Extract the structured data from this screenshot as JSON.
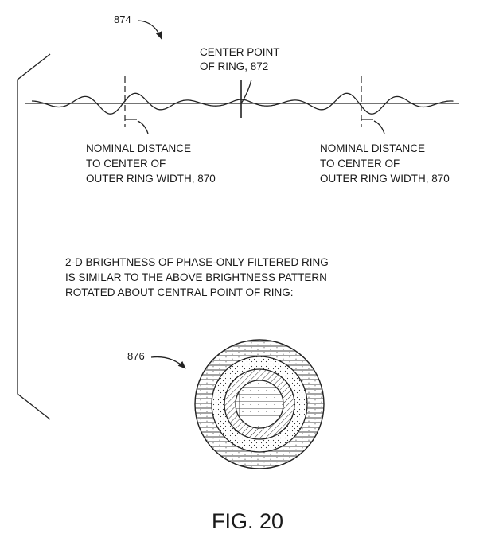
{
  "refs": {
    "waveform": "874",
    "ring": "876"
  },
  "center_label": [
    "CENTER POINT",
    "OF RING, 872"
  ],
  "left_label": [
    "NOMINAL DISTANCE",
    "TO CENTER OF",
    "OUTER RING WIDTH, 870"
  ],
  "right_label": [
    "NOMINAL DISTANCE",
    "TO CENTER OF",
    "OUTER RING WIDTH, 870"
  ],
  "description": [
    "2-D BRIGHTNESS OF PHASE-ONLY FILTERED RING",
    "IS SIMILAR TO THE ABOVE BRIGHTNESS PATTERN",
    "ROTATED ABOUT CENTRAL POINT OF RING:"
  ],
  "figure_caption": "FIG. 20"
}
